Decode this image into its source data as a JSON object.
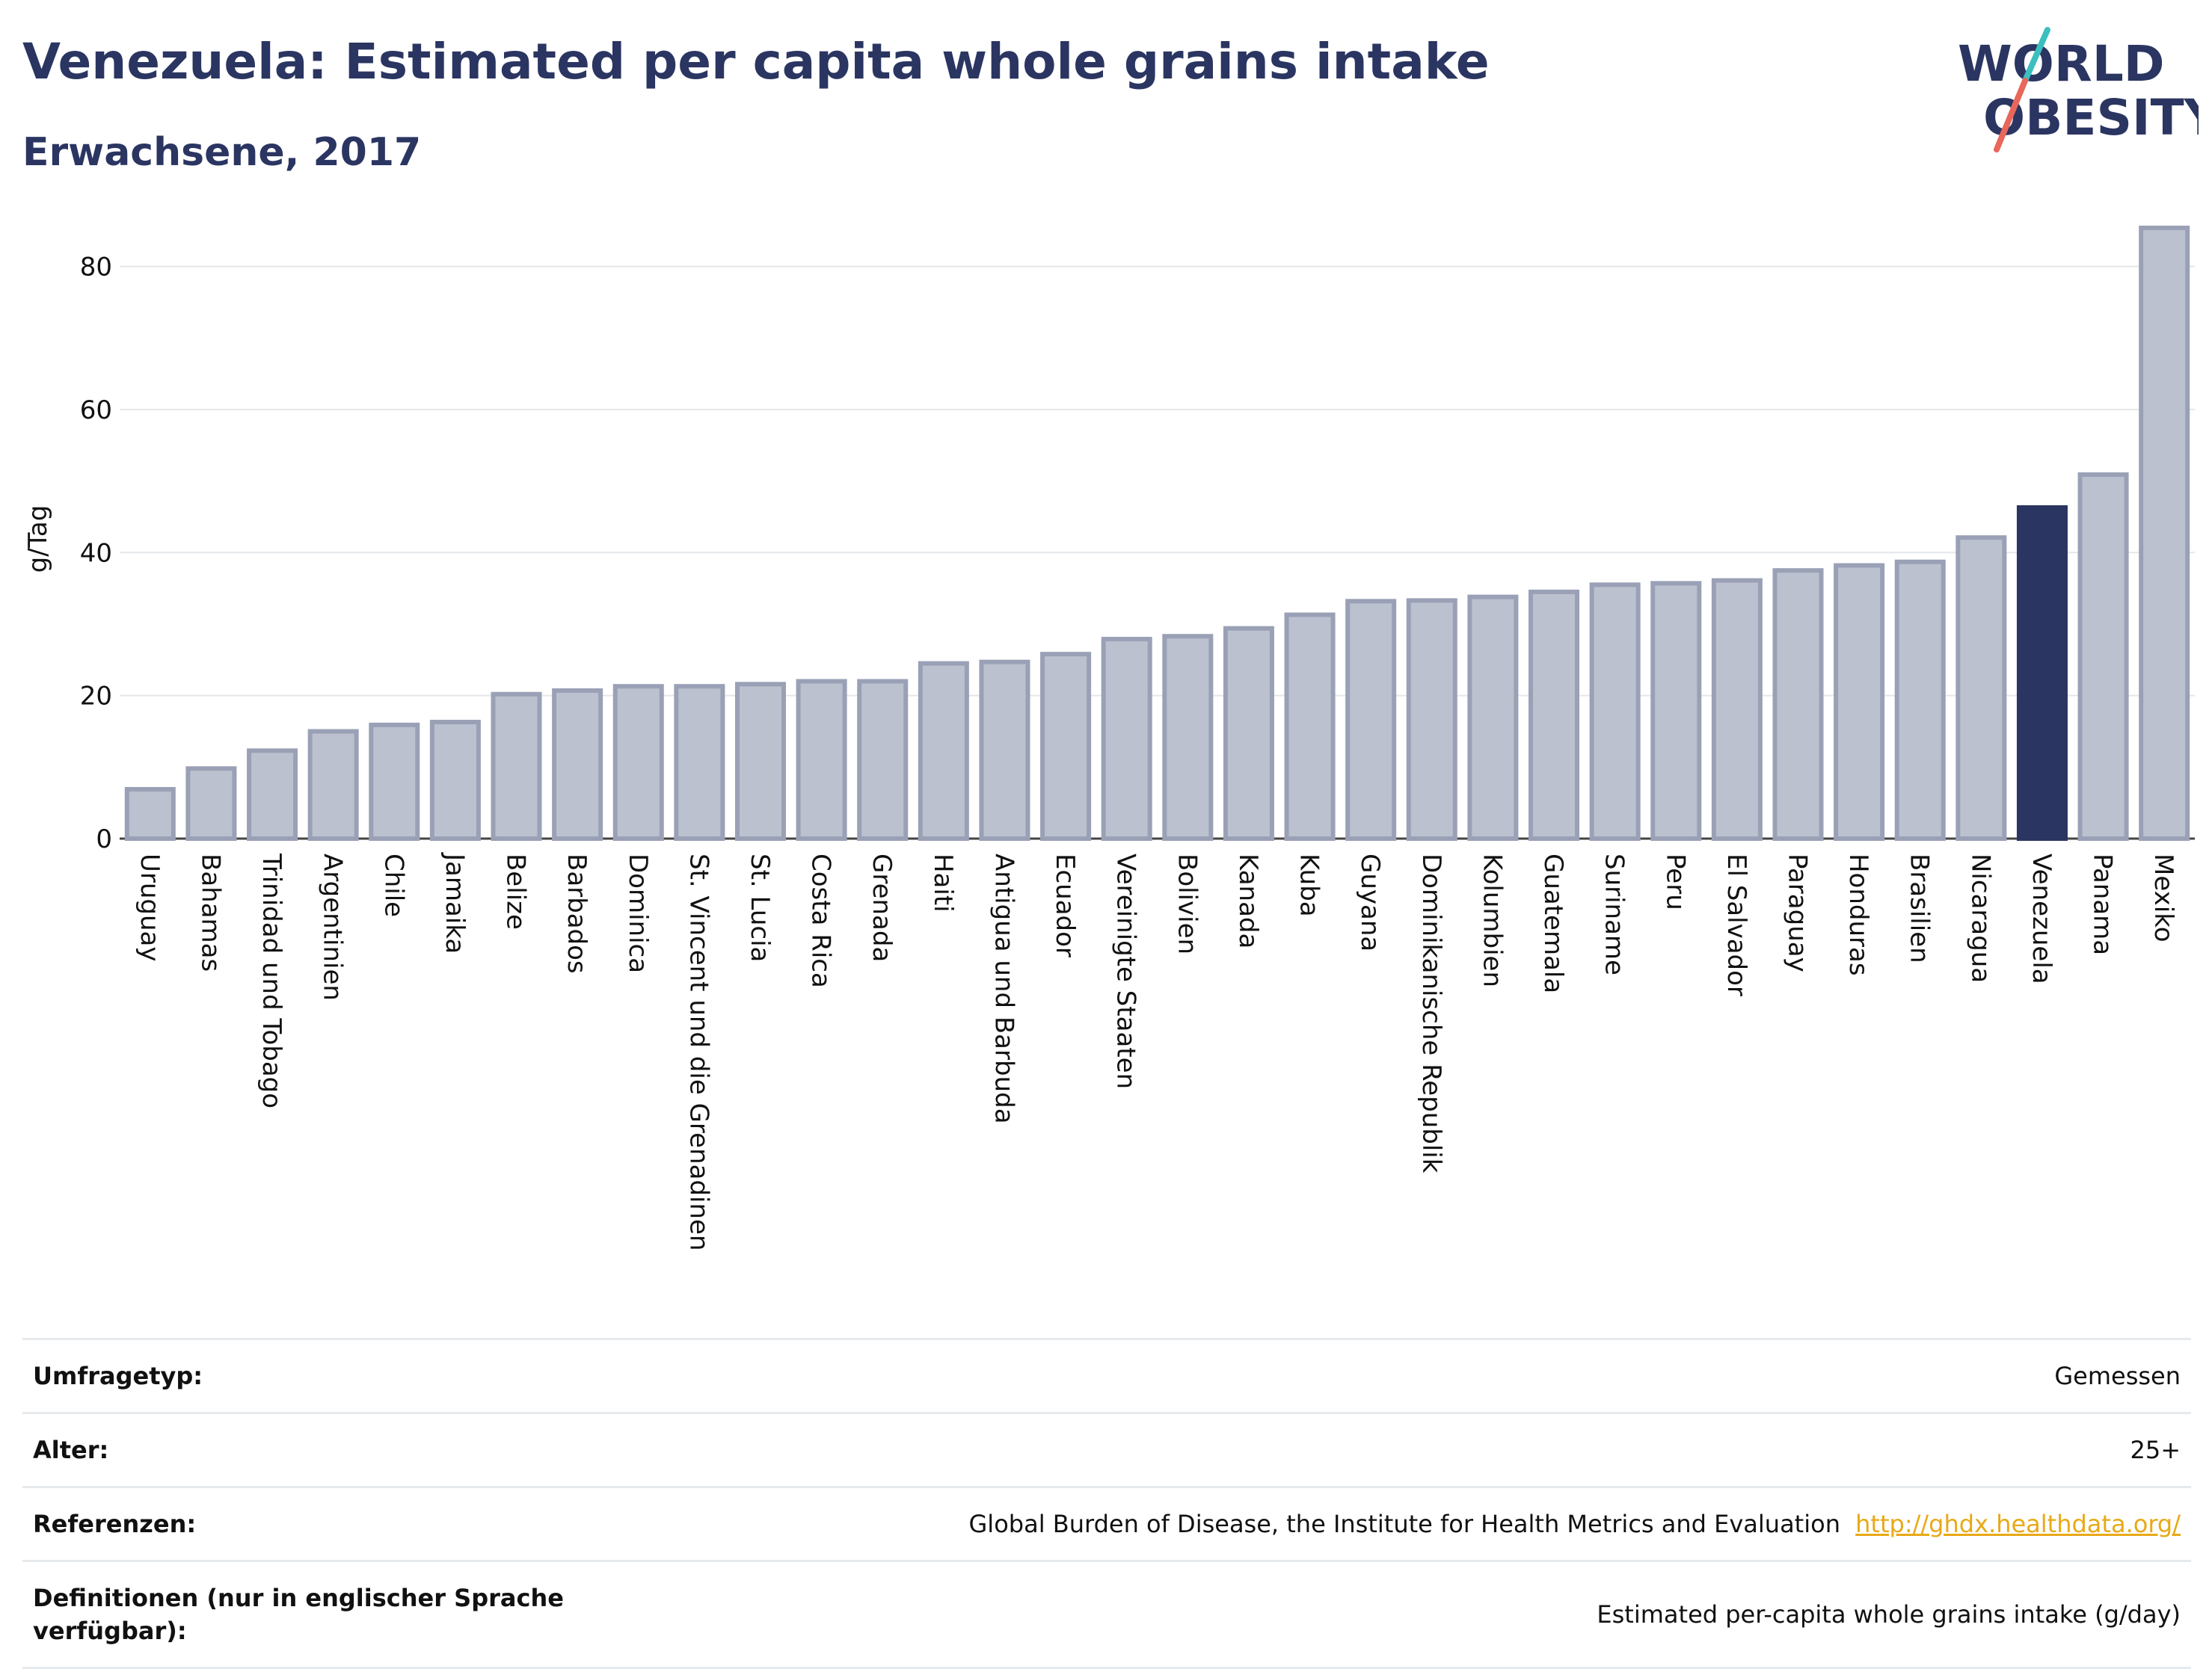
{
  "title": "Venezuela: Estimated per capita whole grains intake",
  "subtitle": "Erwachsene, 2017",
  "logo": {
    "line1": "WORLD",
    "line2": "OBESITY"
  },
  "colors": {
    "title": "#2b3561",
    "bar": "#bcc1cf",
    "bar_border": "#9aa1b6",
    "highlight": "#2b3561",
    "link": "#e8a917",
    "grid": "#e4e7ea"
  },
  "chart_data": {
    "type": "bar",
    "ylabel": "g/Tag",
    "xlabel": "",
    "ylim": [
      0,
      88
    ],
    "yticks": [
      0,
      20,
      40,
      60,
      80
    ],
    "highlight": "Venezuela",
    "categories": [
      "Uruguay",
      "Bahamas",
      "Trinidad und Tobago",
      "Argentinien",
      "Chile",
      "Jamaika",
      "Belize",
      "Barbados",
      "Dominica",
      "St. Vincent und die Grenadinen",
      "St. Lucia",
      "Costa Rica",
      "Grenada",
      "Haiti",
      "Antigua und Barbuda",
      "Ecuador",
      "Vereinigte Staaten",
      "Bolivien",
      "Kanada",
      "Kuba",
      "Guyana",
      "Dominikanische Republik",
      "Kolumbien",
      "Guatemala",
      "Suriname",
      "Peru",
      "El Salvador",
      "Paraguay",
      "Honduras",
      "Brasilien",
      "Nicaragua",
      "Venezuela",
      "Panama",
      "Mexiko"
    ],
    "values": [
      6.9,
      9.8,
      12.3,
      15.0,
      15.9,
      16.3,
      20.2,
      20.7,
      21.3,
      21.3,
      21.6,
      22.0,
      22.0,
      24.5,
      24.7,
      25.8,
      27.9,
      28.3,
      29.4,
      31.3,
      33.2,
      33.3,
      33.8,
      34.5,
      35.5,
      35.7,
      36.1,
      37.5,
      38.2,
      38.7,
      42.1,
      46.3,
      50.9,
      85.4
    ]
  },
  "info": [
    {
      "key": "Umfragetyp:",
      "value": "Gemessen"
    },
    {
      "key": "Alter:",
      "value": "25+"
    },
    {
      "key": "Referenzen:",
      "value": "Global Burden of Disease, the Institute for Health Metrics and Evaluation",
      "link": "http://ghdx.healthdata.org/"
    },
    {
      "key": "Definitionen (nur in englischer Sprache verfügbar):",
      "value": "Estimated per-capita whole grains intake (g/day)"
    }
  ]
}
